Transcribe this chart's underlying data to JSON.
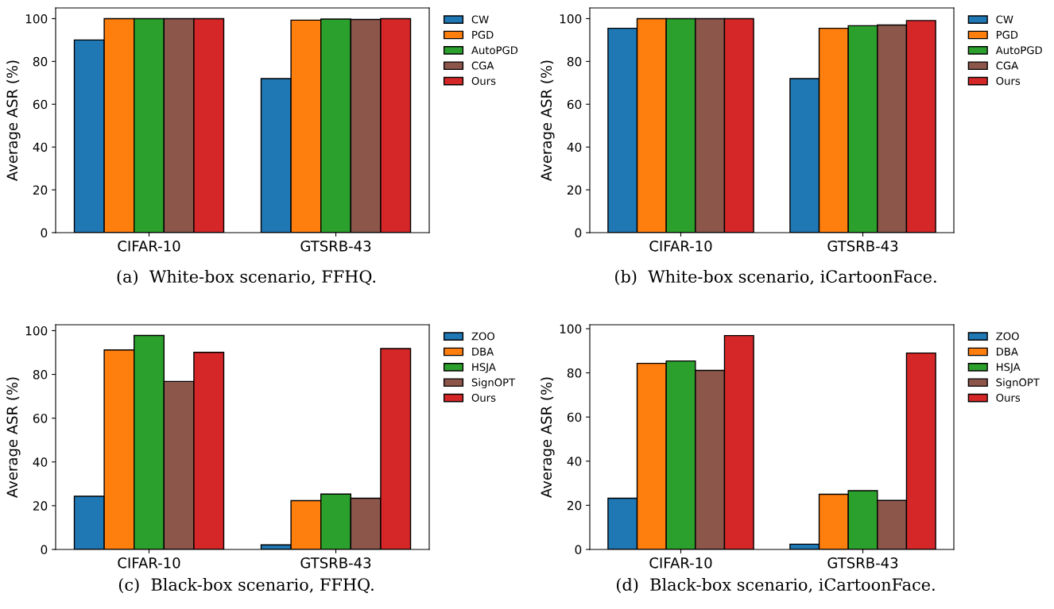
{
  "chart_data": [
    {
      "type": "bar",
      "ylabel": "Average ASR (%)",
      "categories": [
        "CIFAR-10",
        "GTSRB-43"
      ],
      "ylim": [
        0,
        105
      ],
      "yticks": [
        0,
        20,
        40,
        60,
        80,
        100
      ],
      "legend": "top right",
      "annotations": [
        "(a)  White-box scenario, FFHQ."
      ],
      "series": [
        {
          "name": "CW",
          "color": "#1f77b4",
          "values": [
            90,
            72
          ]
        },
        {
          "name": "PGD",
          "color": "#ff7f0e",
          "values": [
            100,
            99.3
          ]
        },
        {
          "name": "AutoPGD",
          "color": "#2ca02c",
          "values": [
            100,
            99.8
          ]
        },
        {
          "name": "CGA",
          "color": "#8c564b",
          "values": [
            100,
            99.6
          ]
        },
        {
          "name": "Ours",
          "color": "#d62728",
          "values": [
            100,
            100
          ]
        }
      ]
    },
    {
      "type": "bar",
      "ylabel": "Average ASR (%)",
      "categories": [
        "CIFAR-10",
        "GTSRB-43"
      ],
      "ylim": [
        0,
        105
      ],
      "yticks": [
        0,
        20,
        40,
        60,
        80,
        100
      ],
      "legend": "top right",
      "annotations": [
        "(b)  White-box scenario, iCartoonFace."
      ],
      "series": [
        {
          "name": "CW",
          "color": "#1f77b4",
          "values": [
            95.5,
            72
          ]
        },
        {
          "name": "PGD",
          "color": "#ff7f0e",
          "values": [
            100,
            95.5
          ]
        },
        {
          "name": "AutoPGD",
          "color": "#2ca02c",
          "values": [
            100,
            96.7
          ]
        },
        {
          "name": "CGA",
          "color": "#8c564b",
          "values": [
            100,
            97.0
          ]
        },
        {
          "name": "Ours",
          "color": "#d62728",
          "values": [
            100,
            99.1
          ]
        }
      ]
    },
    {
      "type": "bar",
      "ylabel": "Average ASR (%)",
      "categories": [
        "CIFAR-10",
        "GTSRB-43"
      ],
      "ylim": [
        0,
        102.7
      ],
      "yticks": [
        0,
        20,
        40,
        60,
        80,
        100
      ],
      "legend": "top right",
      "annotations": [
        "(c)  Black-box scenario, FFHQ."
      ],
      "series": [
        {
          "name": "ZOO",
          "color": "#1f77b4",
          "values": [
            24.3,
            2.1
          ]
        },
        {
          "name": "DBA",
          "color": "#ff7f0e",
          "values": [
            91.2,
            22.3
          ]
        },
        {
          "name": "HSJA",
          "color": "#2ca02c",
          "values": [
            97.8,
            25.3
          ]
        },
        {
          "name": "SignOPT",
          "color": "#8c564b",
          "values": [
            76.8,
            23.4
          ]
        },
        {
          "name": "Ours",
          "color": "#d62728",
          "values": [
            90.1,
            91.8
          ]
        }
      ]
    },
    {
      "type": "bar",
      "ylabel": "Average ASR (%)",
      "categories": [
        "CIFAR-10",
        "GTSRB-43"
      ],
      "ylim": [
        0,
        101.8
      ],
      "yticks": [
        0,
        20,
        40,
        60,
        80,
        100
      ],
      "legend": "top right",
      "annotations": [
        "(d)  Black-box scenario, iCartoonFace."
      ],
      "series": [
        {
          "name": "ZOO",
          "color": "#1f77b4",
          "values": [
            23.2,
            2.4
          ]
        },
        {
          "name": "DBA",
          "color": "#ff7f0e",
          "values": [
            84.3,
            25.0
          ]
        },
        {
          "name": "HSJA",
          "color": "#2ca02c",
          "values": [
            85.4,
            26.6
          ]
        },
        {
          "name": "SignOPT",
          "color": "#8c564b",
          "values": [
            81.1,
            22.2
          ]
        },
        {
          "name": "Ours",
          "color": "#d62728",
          "values": [
            96.9,
            89.0
          ]
        }
      ]
    }
  ]
}
